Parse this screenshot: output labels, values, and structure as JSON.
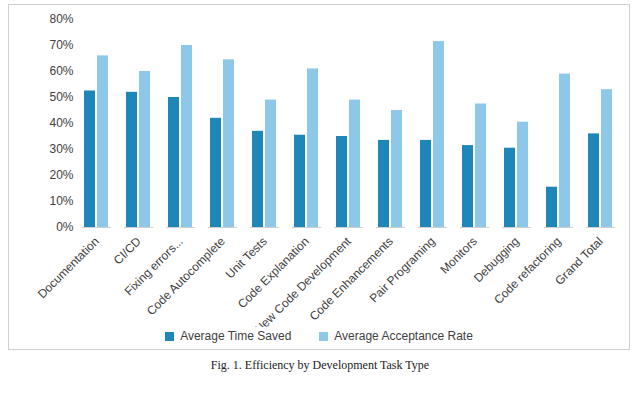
{
  "chart_data": {
    "type": "bar",
    "categories": [
      "Documentation",
      "CI/CD",
      "Fixing errors...",
      "Code Autocomplete",
      "Unit Tests",
      "Code Explanation",
      "New Code Development",
      "Code Enhancements",
      "Pair Programing",
      "Monitors",
      "Debugging",
      "Code refactoring",
      "Grand Total"
    ],
    "series": [
      {
        "name": "Average Time Saved",
        "color": "#1f86b8",
        "values": [
          52.5,
          52,
          50,
          42,
          37,
          35.5,
          35,
          33.5,
          33.5,
          31.5,
          30.5,
          15.5,
          36
        ]
      },
      {
        "name": "Average Acceptance Rate",
        "color": "#8ec8e8",
        "values": [
          66,
          60,
          70,
          64.5,
          49,
          61,
          49,
          45,
          71.5,
          47.5,
          40.5,
          59,
          53
        ]
      }
    ],
    "ylim": [
      0,
      80
    ],
    "yticks": [
      {
        "value": 0,
        "label": "0%"
      },
      {
        "value": 10,
        "label": "10%"
      },
      {
        "value": 20,
        "label": "20%"
      },
      {
        "value": 30,
        "label": "30%"
      },
      {
        "value": 40,
        "label": "40%"
      },
      {
        "value": 50,
        "label": "50%"
      },
      {
        "value": 60,
        "label": "60%"
      },
      {
        "value": 70,
        "label": "70%"
      },
      {
        "value": 80,
        "label": "80%"
      }
    ],
    "grid": false,
    "legend": "bottom",
    "caption": "Fig. 1. Efficiency by Development Task Type"
  }
}
